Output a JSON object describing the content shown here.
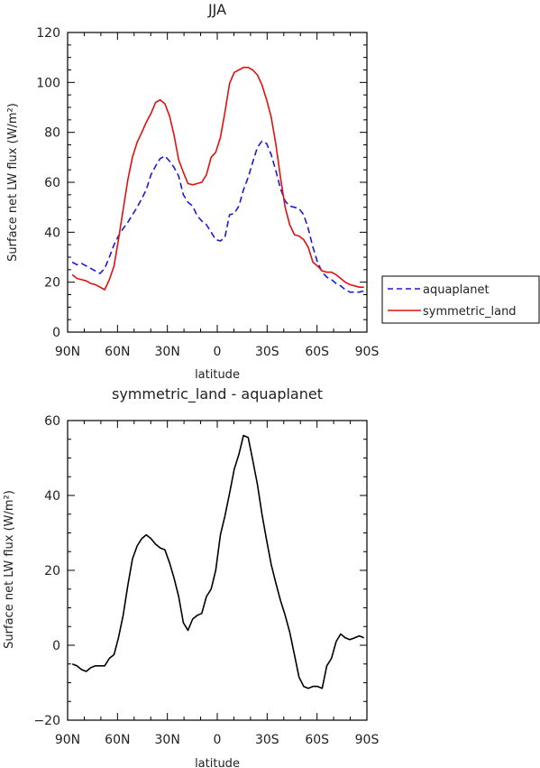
{
  "chart_data": [
    {
      "type": "line",
      "title": "JJA",
      "xlabel": "latitude",
      "ylabel": "Surface net LW flux (W/m²)",
      "xlim": [
        90,
        -90
      ],
      "ylim": [
        0,
        120
      ],
      "xticks": [
        90,
        60,
        30,
        0,
        -30,
        -60,
        -90
      ],
      "xticklabels": [
        "90N",
        "60N",
        "30N",
        "0",
        "30S",
        "60S",
        "90S"
      ],
      "yticks": [
        0,
        20,
        40,
        60,
        80,
        100,
        120
      ],
      "yticklabels": [
        "0",
        "20",
        "40",
        "60",
        "80",
        "100",
        "120"
      ],
      "legend_position": "right",
      "series": [
        {
          "name": "aquaplanet",
          "color": "#1a1ad6",
          "dash": "dashed",
          "x": [
            87.2,
            84.4,
            81.6,
            78.8,
            76.1,
            73.3,
            70.5,
            67.7,
            64.9,
            62.1,
            59.4,
            56.6,
            53.8,
            51.0,
            48.2,
            45.4,
            42.7,
            39.9,
            37.1,
            34.3,
            31.5,
            28.7,
            26.0,
            23.2,
            20.4,
            17.6,
            14.8,
            12.0,
            9.3,
            6.5,
            3.7,
            0.9,
            -1.9,
            -4.6,
            -7.4,
            -10.2,
            -13.0,
            -15.8,
            -18.6,
            -21.3,
            -24.1,
            -26.9,
            -29.7,
            -32.5,
            -35.3,
            -38.0,
            -40.8,
            -43.6,
            -46.4,
            -49.2,
            -52.0,
            -54.7,
            -57.5,
            -60.3,
            -63.1,
            -65.9,
            -68.7,
            -71.5,
            -74.2,
            -77.0,
            -79.8,
            -82.6,
            -85.4,
            -88.2
          ],
          "y": [
            28,
            27,
            27.5,
            26.5,
            25.5,
            24.5,
            23.5,
            25.5,
            30,
            35,
            38.5,
            41.5,
            44,
            47,
            50,
            53.5,
            57,
            63,
            66.5,
            69.5,
            70.5,
            68.5,
            66,
            62.5,
            55,
            52,
            50.5,
            46.5,
            44.5,
            43,
            40,
            37,
            36.5,
            38,
            47,
            47.5,
            50.5,
            57,
            62,
            68,
            74,
            76.5,
            75.5,
            71,
            64.5,
            57.5,
            52.5,
            50.5,
            50,
            49.5,
            47,
            41.5,
            34,
            28,
            24,
            22,
            21,
            19.5,
            18.5,
            17,
            16,
            16,
            16,
            16.5
          ]
        },
        {
          "name": "symmetric_land",
          "color": "#e01010",
          "dash": "solid",
          "x": [
            87.2,
            84.4,
            81.6,
            78.8,
            76.1,
            73.3,
            70.5,
            67.7,
            64.9,
            62.1,
            59.4,
            56.6,
            53.8,
            51.0,
            48.2,
            45.4,
            42.7,
            39.9,
            37.1,
            34.3,
            31.5,
            28.7,
            26.0,
            23.2,
            20.4,
            17.6,
            14.8,
            12.0,
            9.3,
            6.5,
            3.7,
            0.9,
            -1.9,
            -4.6,
            -7.4,
            -10.2,
            -13.0,
            -15.8,
            -18.6,
            -21.3,
            -24.1,
            -26.9,
            -29.7,
            -32.5,
            -35.3,
            -38.0,
            -40.8,
            -43.6,
            -46.4,
            -49.2,
            -52.0,
            -54.7,
            -57.5,
            -60.3,
            -63.1,
            -65.9,
            -68.7,
            -71.5,
            -74.2,
            -77.0,
            -79.8,
            -82.6,
            -85.4,
            -88.2
          ],
          "y": [
            23,
            21.5,
            21,
            20.5,
            19.5,
            19,
            18,
            17,
            21,
            26.5,
            37,
            49,
            61,
            70,
            76,
            80,
            84,
            87.5,
            92,
            93,
            91.5,
            86.5,
            79,
            69,
            64,
            59.5,
            59,
            59.5,
            60,
            63,
            70,
            72,
            78,
            88,
            99.5,
            104,
            105,
            106,
            106,
            105,
            103,
            99,
            93,
            86,
            75,
            62,
            50,
            43,
            39,
            38.5,
            37,
            34,
            28,
            26.5,
            24.5,
            24,
            24,
            23,
            21.5,
            20,
            19,
            18.5,
            18,
            18
          ]
        }
      ]
    },
    {
      "type": "line",
      "title": "symmetric_land - aquaplanet",
      "xlabel": "latitude",
      "ylabel": "Surface net LW flux (W/m²)",
      "xlim": [
        90,
        -90
      ],
      "ylim": [
        -20,
        60
      ],
      "xticks": [
        90,
        60,
        30,
        0,
        -30,
        -60,
        -90
      ],
      "xticklabels": [
        "90N",
        "60N",
        "30N",
        "0",
        "30S",
        "60S",
        "90S"
      ],
      "yticks": [
        -20,
        0,
        20,
        40,
        60
      ],
      "yticklabels": [
        "−20",
        "0",
        "20",
        "40",
        "60"
      ],
      "series": [
        {
          "color": "#000000",
          "dash": "solid",
          "x": [
            87.2,
            84.4,
            81.6,
            78.8,
            76.1,
            73.3,
            70.5,
            67.7,
            64.9,
            62.1,
            59.4,
            56.6,
            53.8,
            51.0,
            48.2,
            45.4,
            42.7,
            39.9,
            37.1,
            34.3,
            31.5,
            28.7,
            26.0,
            23.2,
            20.4,
            17.6,
            14.8,
            12.0,
            9.3,
            6.5,
            3.7,
            0.9,
            -1.9,
            -4.6,
            -7.4,
            -10.2,
            -13.0,
            -15.8,
            -18.6,
            -21.3,
            -24.1,
            -26.9,
            -29.7,
            -32.5,
            -35.3,
            -38.0,
            -40.8,
            -43.6,
            -46.4,
            -49.2,
            -52.0,
            -54.7,
            -57.5,
            -60.3,
            -63.1,
            -65.9,
            -68.7,
            -71.5,
            -74.2,
            -77.0,
            -79.8,
            -82.6,
            -85.4,
            -88.2
          ],
          "y": [
            -5,
            -5.5,
            -6.5,
            -7,
            -6,
            -5.5,
            -5.5,
            -5.5,
            -3.5,
            -2.5,
            2,
            8,
            16,
            23,
            26.5,
            28.5,
            29.5,
            28.5,
            27,
            26,
            25.5,
            22,
            18,
            13,
            6,
            4,
            7,
            8,
            8.5,
            13,
            15,
            20,
            29.5,
            34.5,
            40.5,
            47,
            51,
            56,
            55.5,
            49.5,
            43,
            35,
            28,
            21.5,
            16.5,
            12,
            8,
            3.5,
            -2.5,
            -8.5,
            -11,
            -11.5,
            -11,
            -11,
            -11.5,
            -5.5,
            -3.5,
            1,
            3,
            2,
            1.5,
            2,
            2.5,
            2
          ]
        }
      ]
    }
  ],
  "legend": {
    "aquaplanet": "aquaplanet",
    "symmetric_land": "symmetric_land"
  }
}
